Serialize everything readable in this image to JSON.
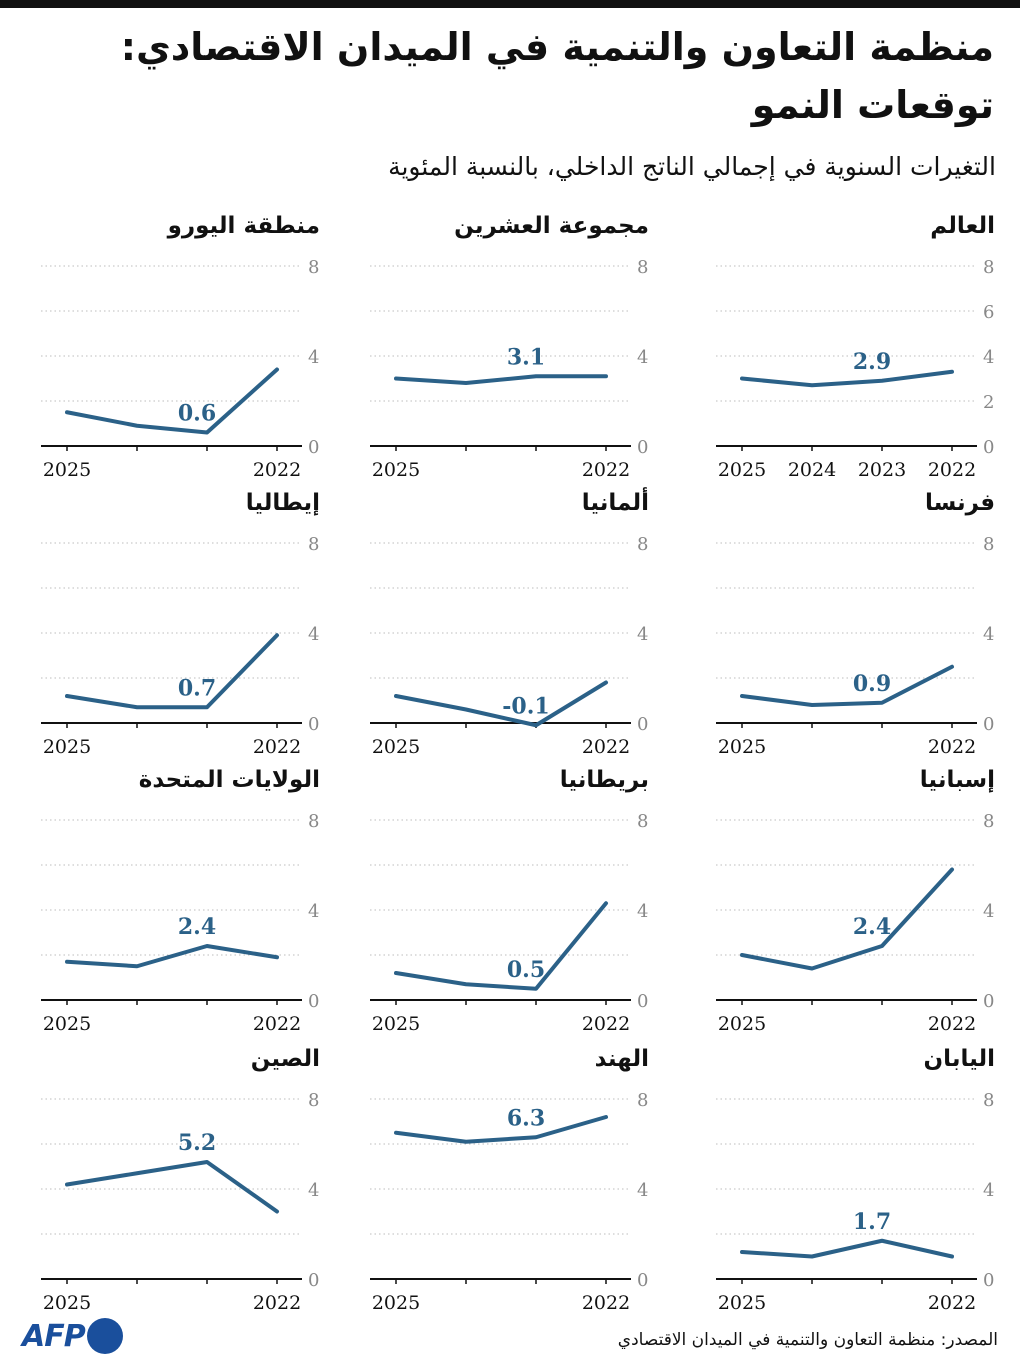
{
  "header": {
    "title_line1": "منظمة التعاون والتنمية في الميدان الاقتصادي:",
    "title_line2": "توقعات النمو",
    "subtitle": "التغيرات السنوية في إجمالي الناتج الداخلي، بالنسبة المئوية"
  },
  "colors": {
    "line": "#2b6188",
    "grid": "#bdbdbd",
    "axis": "#111111",
    "tick": "#888888"
  },
  "chart_data": [
    {
      "type": "line",
      "title": "العالم",
      "x": [
        "2022",
        "2023",
        "2024",
        "2025"
      ],
      "values": [
        3.3,
        2.9,
        2.7,
        3.0
      ],
      "label": "2.9",
      "ylim": [
        0,
        8
      ],
      "yticks": [
        0,
        2,
        4,
        6,
        8
      ],
      "xticks_shown": [
        "2025",
        "2024",
        "2023",
        "2022"
      ],
      "grid": true
    },
    {
      "type": "line",
      "title": "مجموعة العشرين",
      "x": [
        "2022",
        "2023",
        "2024",
        "2025"
      ],
      "values": [
        3.1,
        3.1,
        2.8,
        3.0
      ],
      "label": "3.1",
      "ylim": [
        0,
        8
      ],
      "yticks": [
        0,
        4,
        8
      ],
      "xticks_shown": [
        "2025",
        "2022"
      ],
      "grid": true
    },
    {
      "type": "line",
      "title": "منطقة اليورو",
      "x": [
        "2022",
        "2023",
        "2024",
        "2025"
      ],
      "values": [
        3.4,
        0.6,
        0.9,
        1.5
      ],
      "label": "0.6",
      "ylim": [
        0,
        8
      ],
      "yticks": [
        0,
        4,
        8
      ],
      "xticks_shown": [
        "2025",
        "2022"
      ],
      "grid": true
    },
    {
      "type": "line",
      "title": "فرنسا",
      "x": [
        "2022",
        "2023",
        "2024",
        "2025"
      ],
      "values": [
        2.5,
        0.9,
        0.8,
        1.2
      ],
      "label": "0.9",
      "ylim": [
        0,
        8
      ],
      "yticks": [
        0,
        4,
        8
      ],
      "xticks_shown": [
        "2025",
        "2022"
      ],
      "grid": true
    },
    {
      "type": "line",
      "title": "ألمانيا",
      "x": [
        "2022",
        "2023",
        "2024",
        "2025"
      ],
      "values": [
        1.8,
        -0.1,
        0.6,
        1.2
      ],
      "label": "-0.1",
      "ylim": [
        0,
        8
      ],
      "yticks": [
        0,
        4,
        8
      ],
      "xticks_shown": [
        "2025",
        "2022"
      ],
      "grid": true
    },
    {
      "type": "line",
      "title": "إيطاليا",
      "x": [
        "2022",
        "2023",
        "2024",
        "2025"
      ],
      "values": [
        3.9,
        0.7,
        0.7,
        1.2
      ],
      "label": "0.7",
      "ylim": [
        0,
        8
      ],
      "yticks": [
        0,
        4,
        8
      ],
      "xticks_shown": [
        "2025",
        "2022"
      ],
      "grid": true
    },
    {
      "type": "line",
      "title": "إسبانيا",
      "x": [
        "2022",
        "2023",
        "2024",
        "2025"
      ],
      "values": [
        5.8,
        2.4,
        1.4,
        2.0
      ],
      "label": "2.4",
      "ylim": [
        0,
        8
      ],
      "yticks": [
        0,
        4,
        8
      ],
      "xticks_shown": [
        "2025",
        "2022"
      ],
      "grid": true
    },
    {
      "type": "line",
      "title": "بريطانيا",
      "x": [
        "2022",
        "2023",
        "2024",
        "2025"
      ],
      "values": [
        4.3,
        0.5,
        0.7,
        1.2
      ],
      "label": "0.5",
      "ylim": [
        0,
        8
      ],
      "yticks": [
        0,
        4,
        8
      ],
      "xticks_shown": [
        "2025",
        "2022"
      ],
      "grid": true
    },
    {
      "type": "line",
      "title": "الولايات المتحدة",
      "x": [
        "2022",
        "2023",
        "2024",
        "2025"
      ],
      "values": [
        1.9,
        2.4,
        1.5,
        1.7
      ],
      "label": "2.4",
      "ylim": [
        0,
        8
      ],
      "yticks": [
        0,
        4,
        8
      ],
      "xticks_shown": [
        "2025",
        "2022"
      ],
      "grid": true
    },
    {
      "type": "line",
      "title": "اليابان",
      "x": [
        "2022",
        "2023",
        "2024",
        "2025"
      ],
      "values": [
        1.0,
        1.7,
        1.0,
        1.2
      ],
      "label": "1.7",
      "ylim": [
        0,
        8
      ],
      "yticks": [
        0,
        4,
        8
      ],
      "xticks_shown": [
        "2025",
        "2022"
      ],
      "grid": true
    },
    {
      "type": "line",
      "title": "الهند",
      "x": [
        "2022",
        "2023",
        "2024",
        "2025"
      ],
      "values": [
        7.2,
        6.3,
        6.1,
        6.5
      ],
      "label": "6.3",
      "ylim": [
        0,
        8
      ],
      "yticks": [
        0,
        4,
        8
      ],
      "xticks_shown": [
        "2025",
        "2022"
      ],
      "grid": true
    },
    {
      "type": "line",
      "title": "الصين",
      "x": [
        "2022",
        "2023",
        "2024",
        "2025"
      ],
      "values": [
        3.0,
        5.2,
        4.7,
        4.2
      ],
      "label": "5.2",
      "ylim": [
        0,
        8
      ],
      "yticks": [
        0,
        4,
        8
      ],
      "xticks_shown": [
        "2025",
        "2022"
      ],
      "grid": true
    }
  ],
  "footer": {
    "source": "المصدر: منظمة التعاون والتنمية في الميدان الاقتصادي",
    "logo": "AFP"
  }
}
